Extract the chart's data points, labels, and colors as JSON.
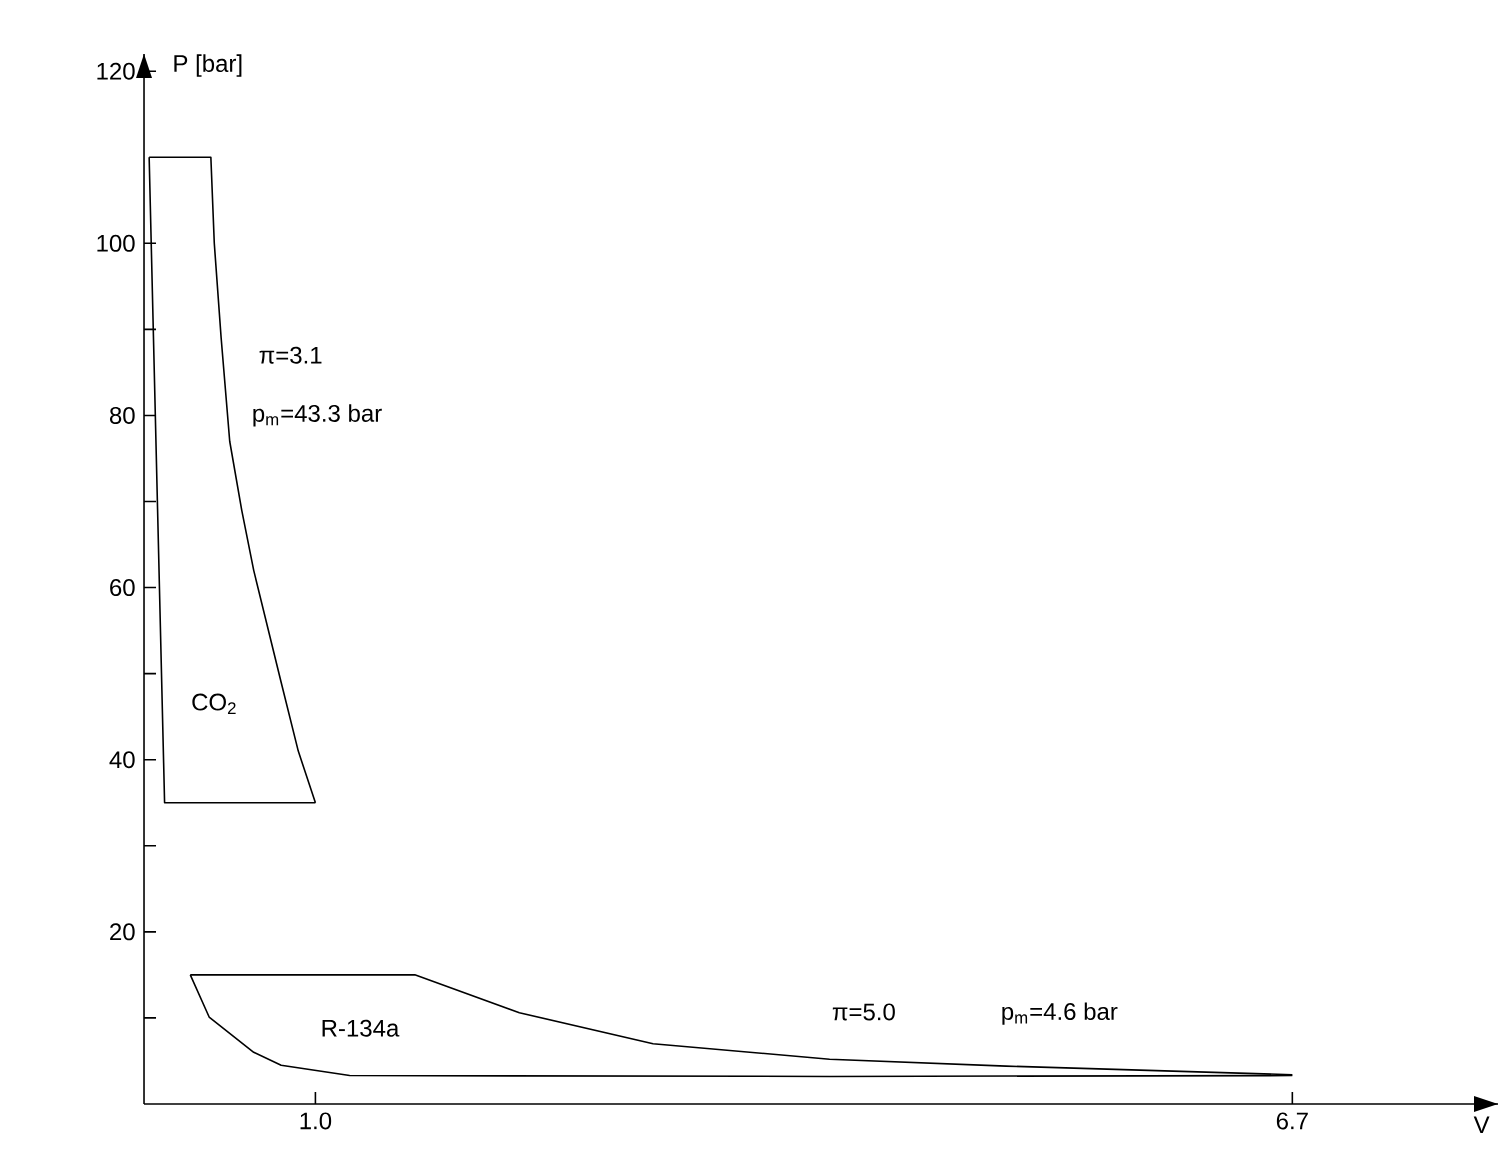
{
  "chart_data": {
    "type": "line",
    "xlabel": "V",
    "ylabel": "P [bar]",
    "xlim": [
      0,
      7.9
    ],
    "ylim": [
      0,
      122
    ],
    "xticks": [
      {
        "value": 1.0,
        "label": "1.0"
      },
      {
        "value": 6.7,
        "label": "6.7"
      }
    ],
    "yticks": [
      {
        "value": 10,
        "label": null
      },
      20,
      {
        "value": 30,
        "label": null
      },
      40,
      {
        "value": 50,
        "label": null
      },
      60,
      {
        "value": 70,
        "label": null
      },
      80,
      {
        "value": 90,
        "label": null
      },
      100,
      120
    ],
    "series": [
      {
        "name": "CO$_{2}$",
        "color": "#000000",
        "x": [
          0.03,
          0.39,
          0.41,
          0.45,
          0.5,
          0.57,
          0.64,
          0.8,
          0.9,
          1.0
        ],
        "values": [
          110,
          110,
          100,
          89,
          77,
          69,
          62,
          49,
          41,
          35
        ]
      },
      {
        "color": "#000000",
        "x": [
          0.03,
          0.12,
          1.0
        ],
        "values": [
          110,
          35,
          35
        ]
      },
      {
        "name": "R-134a",
        "color": "#000000",
        "x": [
          0.27,
          1.58,
          2.19,
          2.97,
          4.0,
          5.03,
          6.7
        ],
        "values": [
          15,
          15,
          10.6,
          7.0,
          5.2,
          4.4,
          3.4
        ]
      },
      {
        "color": "#000000",
        "x": [
          0.27,
          0.38,
          0.64,
          0.8,
          1.2,
          4.0,
          6.7
        ],
        "values": [
          15,
          10.1,
          6.0,
          4.5,
          3.3,
          3.2,
          3.3
        ]
      }
    ],
    "annotations": [
      "π=3.1",
      "p$_{m}$=43.3 bar",
      "π=5.0",
      "p$_{m}$=4.6 bar"
    ],
    "grid": false,
    "legend": false,
    "marker": "none",
    "line_style": "solid"
  }
}
